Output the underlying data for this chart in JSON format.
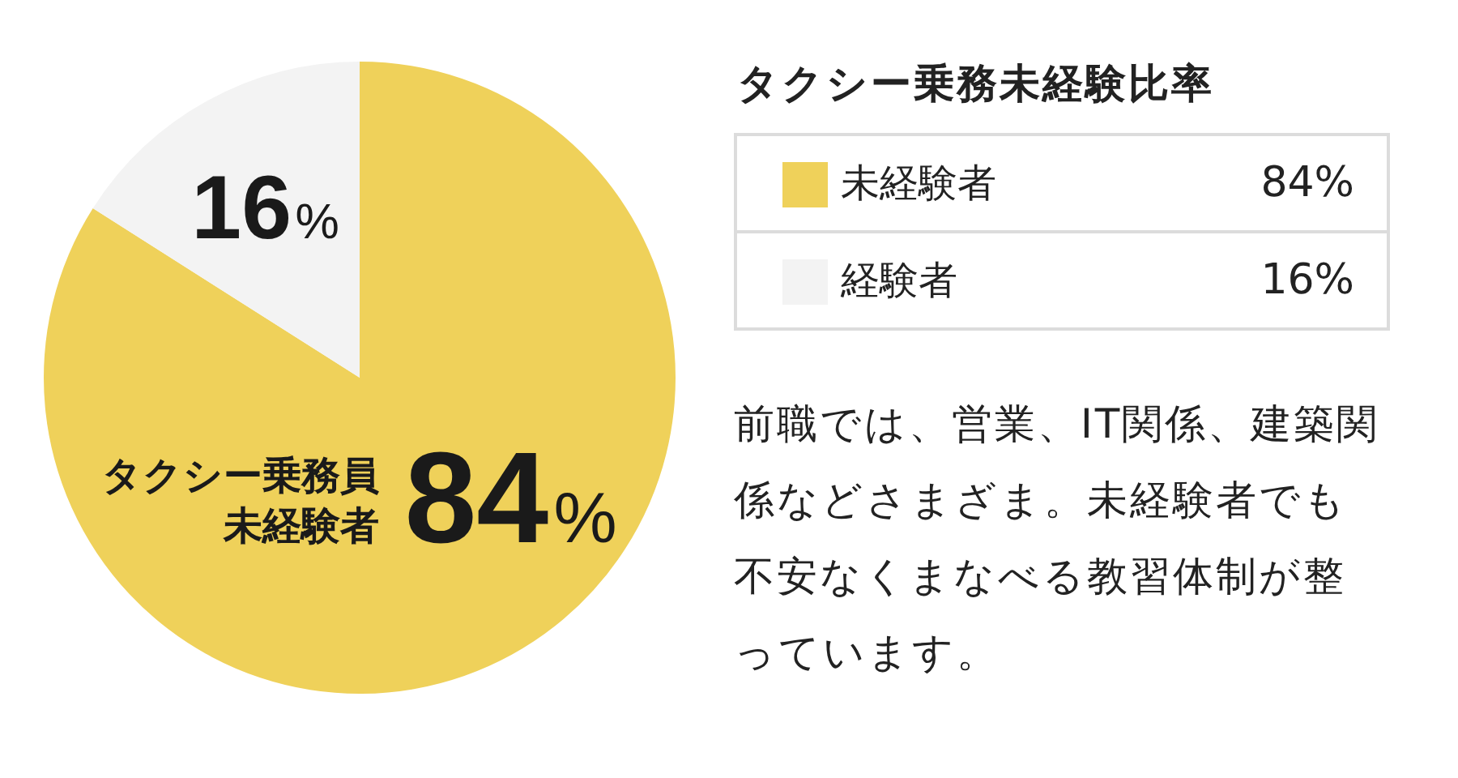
{
  "chart_data": {
    "type": "pie",
    "title": "タクシー乗務未経験比率",
    "categories": [
      "未経験者",
      "経験者"
    ],
    "values": [
      84,
      16
    ],
    "colors": [
      "#efd15a",
      "#f3f3f3"
    ],
    "value_labels": [
      "84%",
      "16%"
    ],
    "legend": "right",
    "annotations": [
      "タクシー乗務員未経験者",
      "前職では、営業、IT関係、建築関係などさまざま。未経験者でも不安なくまなべる教習体制が整っています。"
    ]
  }
}
